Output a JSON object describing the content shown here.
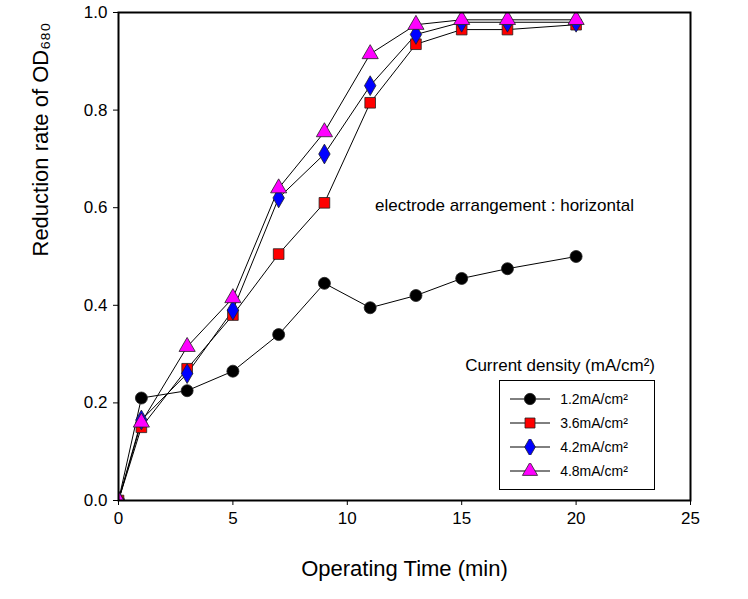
{
  "chart_data": {
    "type": "line",
    "x_label": "Operating Time (min)",
    "y_label": "Reduction rate of OD₆₈₀",
    "annotation": "electrode arrangement : horizontal",
    "legend_title": "Current density (mA/cm²)",
    "legend": "lower right",
    "x": [
      0,
      1,
      3,
      5,
      7,
      9,
      11,
      13,
      15,
      17,
      20
    ],
    "series": [
      {
        "name": "1.2mA/cm²",
        "color": "#000000",
        "marker": "circle",
        "values": [
          0,
          0.21,
          0.225,
          0.265,
          0.34,
          0.445,
          0.395,
          0.42,
          0.455,
          0.475,
          0.5
        ]
      },
      {
        "name": "3.6mA/cm²",
        "color": "#ff0000",
        "marker": "square",
        "values": [
          0,
          0.15,
          0.27,
          0.38,
          0.505,
          0.61,
          0.815,
          0.935,
          0.965,
          0.965,
          0.975
        ]
      },
      {
        "name": "4.2mA/cm²",
        "color": "#0000ff",
        "marker": "diamond",
        "values": [
          0,
          0.165,
          0.26,
          0.39,
          0.62,
          0.71,
          0.85,
          0.955,
          0.98,
          0.98,
          0.98
        ]
      },
      {
        "name": "4.8mA/cm²",
        "color": "#ff00ff",
        "marker": "triangle",
        "values": [
          0,
          0.16,
          0.315,
          0.415,
          0.64,
          0.755,
          0.915,
          0.975,
          0.985,
          0.985,
          0.985
        ]
      }
    ],
    "xlim": [
      0,
      25
    ],
    "xticks": [
      0,
      5,
      10,
      15,
      20,
      25
    ],
    "ylim": [
      0,
      1
    ],
    "yticks": [
      {
        "value": 0,
        "label": "0.0"
      },
      0.2,
      0.4,
      0.6,
      0.8,
      {
        "value": 1,
        "label": "1.0"
      }
    ],
    "grid": false
  }
}
